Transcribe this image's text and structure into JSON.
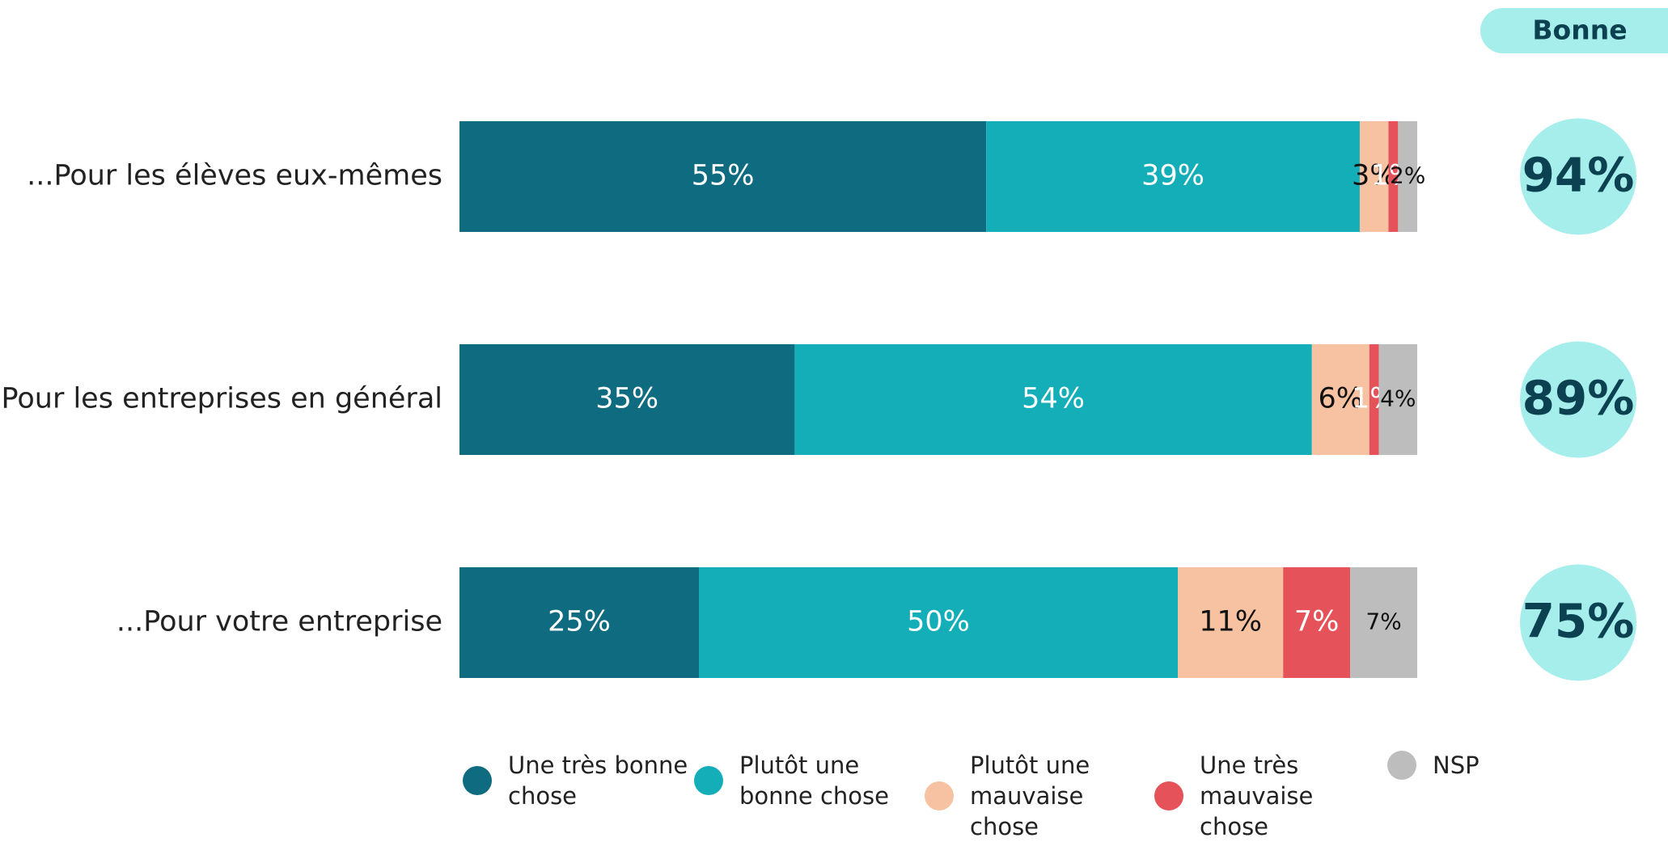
{
  "chart_data": {
    "type": "stacked-bar-horizontal",
    "categories": [
      "...Pour les élèves eux-mêmes",
      "...Pour les entreprises en général",
      "...Pour votre entreprise"
    ],
    "xlim": [
      0,
      100
    ],
    "series": [
      {
        "name": "Une très bonne chose",
        "color": "#0f6b80",
        "label_color": "#ffffff",
        "values": [
          55,
          35,
          25
        ],
        "value_labels": [
          "55%",
          "35%",
          "25%"
        ]
      },
      {
        "name": "Plutôt une bonne chose",
        "color": "#14aeb8",
        "label_color": "#ffffff",
        "values": [
          39,
          54,
          50
        ],
        "value_labels": [
          "39%",
          "54%",
          "50%"
        ]
      },
      {
        "name": "Plutôt une mauvaise chose",
        "color": "#f7c2a2",
        "label_color": "#111111",
        "values": [
          3,
          6,
          11
        ],
        "value_labels": [
          "3%",
          "6%",
          "11%"
        ]
      },
      {
        "name": "Une très mauvaise chose",
        "color": "#e5525a",
        "label_color": "#ffffff",
        "values": [
          1,
          1,
          7
        ],
        "value_labels": [
          "1%",
          "1%",
          "7%"
        ]
      },
      {
        "name": "NSP",
        "color": "#bdbdbd",
        "label_color": "#111111",
        "values": [
          2,
          4,
          7
        ],
        "value_labels": [
          "2%",
          "4%",
          "7%"
        ]
      }
    ],
    "bonne": {
      "title": "Bonne",
      "color": "#a6eeec",
      "values": [
        94,
        89,
        75
      ],
      "value_labels": [
        "94%",
        "89%",
        "75%"
      ]
    }
  }
}
